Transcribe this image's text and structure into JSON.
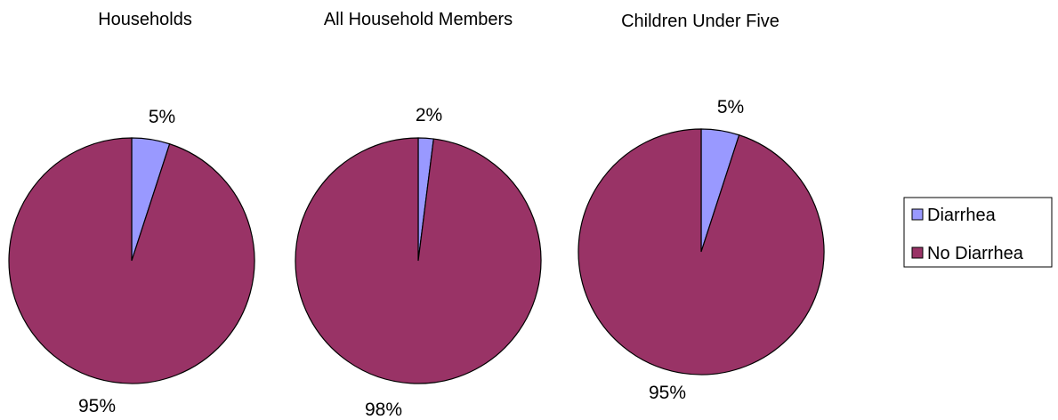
{
  "chart_data": {
    "type": "pie",
    "charts": [
      {
        "title": "Households",
        "slices": [
          {
            "label": "Diarrhea",
            "value": 5,
            "display": "5%"
          },
          {
            "label": "No Diarrhea",
            "value": 95,
            "display": "95%"
          }
        ]
      },
      {
        "title": "All Household Members",
        "slices": [
          {
            "label": "Diarrhea",
            "value": 2,
            "display": "2%"
          },
          {
            "label": "No Diarrhea",
            "value": 98,
            "display": "98%"
          }
        ]
      },
      {
        "title": "Children Under Five",
        "slices": [
          {
            "label": "Diarrhea",
            "value": 5,
            "display": "5%"
          },
          {
            "label": "No Diarrhea",
            "value": 95,
            "display": "95%"
          }
        ]
      }
    ],
    "legend": {
      "position": "right",
      "entries": [
        {
          "label": "Diarrhea",
          "color": "#9999ff"
        },
        {
          "label": "No Diarrhea",
          "color": "#993366"
        }
      ]
    },
    "colors": {
      "Diarrhea": "#9999ff",
      "No Diarrhea": "#993366",
      "outline": "#000000"
    }
  }
}
